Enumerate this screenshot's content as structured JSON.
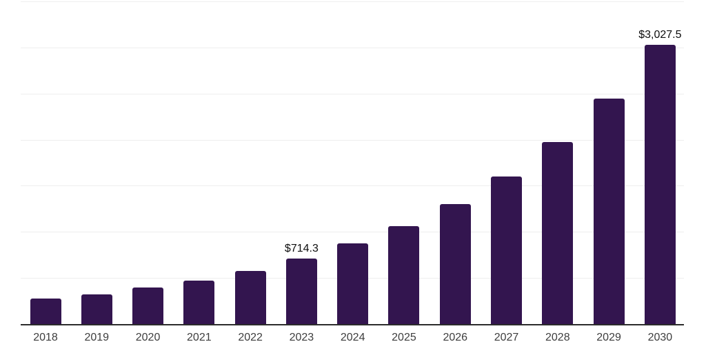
{
  "chart_data": {
    "type": "bar",
    "title": "",
    "xlabel": "",
    "ylabel": "",
    "categories": [
      "2018",
      "2019",
      "2020",
      "2021",
      "2022",
      "2023",
      "2024",
      "2025",
      "2026",
      "2027",
      "2028",
      "2029",
      "2030"
    ],
    "values": [
      274,
      324,
      400,
      474,
      578,
      714.3,
      877,
      1064,
      1303,
      1600,
      1973,
      2446,
      3027.5
    ],
    "value_labels": [
      "",
      "",
      "",
      "",
      "",
      "$714.3",
      "",
      "",
      "",
      "",
      "",
      "",
      "$3,027.5"
    ],
    "ylim": [
      0,
      3500
    ],
    "grid_step": 500,
    "grid": "horizontal-only",
    "legend_position": "none",
    "colors": {
      "bar": "#33154f",
      "axis": "#2b2b2b",
      "gridline": "#eeeeee",
      "tick_label": "#3d3d3d",
      "value_label": "#0d0d0d",
      "background": "#ffffff"
    }
  }
}
